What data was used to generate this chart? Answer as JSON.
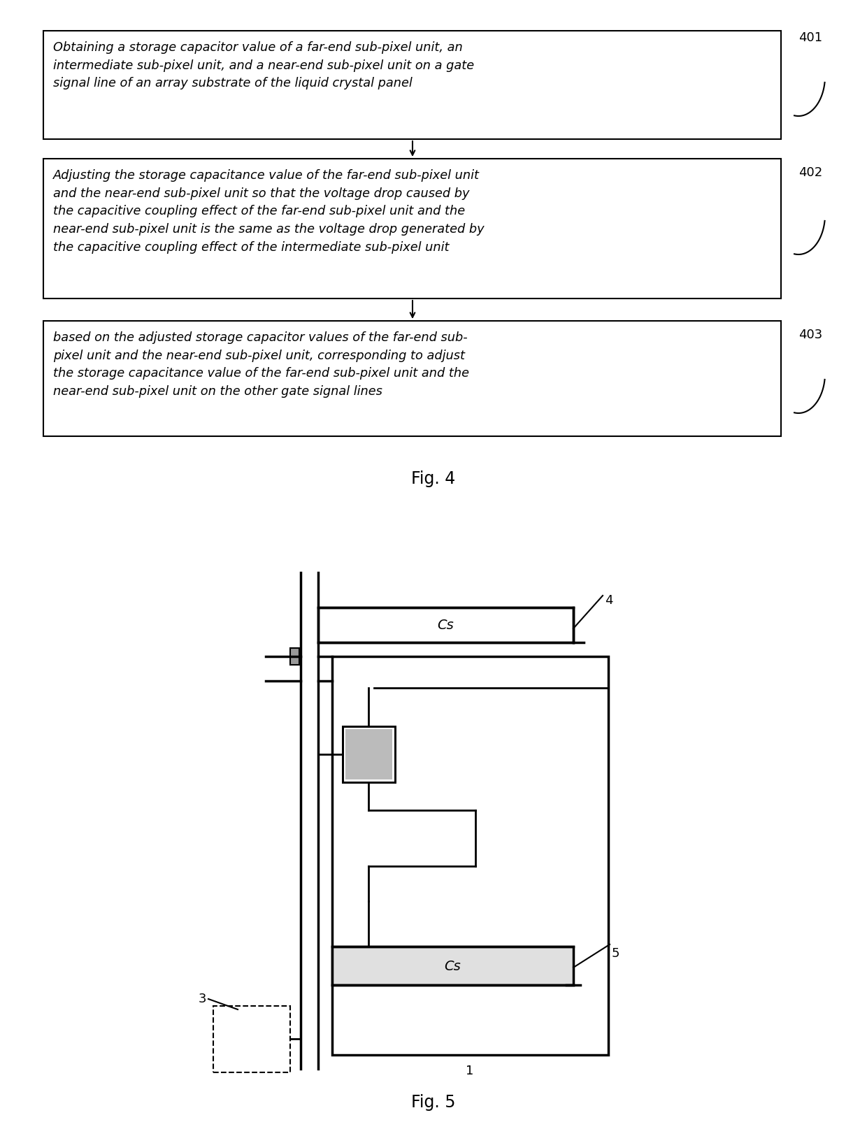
{
  "bg_color": "#ffffff",
  "fig_width": 12.4,
  "fig_height": 16.06,
  "box1_text": "Obtaining a storage capacitor value of a far-end sub-pixel unit, an\nintermediate sub-pixel unit, and a near-end sub-pixel unit on a gate\nsignal line of an array substrate of the liquid crystal panel",
  "box2_text": "Adjusting the storage capacitance value of the far-end sub-pixel unit\nand the near-end sub-pixel unit so that the voltage drop caused by\nthe capacitive coupling effect of the far-end sub-pixel unit and the\nnear-end sub-pixel unit is the same as the voltage drop generated by\nthe capacitive coupling effect of the intermediate sub-pixel unit",
  "box3_text": "based on the adjusted storage capacitor values of the far-end sub-\npixel unit and the near-end sub-pixel unit, corresponding to adjust\nthe storage capacitance value of the far-end sub-pixel unit and the\nnear-end sub-pixel unit on the other gate signal lines",
  "label401": "401",
  "label402": "402",
  "label403": "403",
  "fig4_caption": "Fig. 4",
  "fig5_caption": "Fig. 5",
  "label1": "1",
  "label3": "3",
  "label4": "4",
  "label5": "5",
  "cs_text": "Cs"
}
